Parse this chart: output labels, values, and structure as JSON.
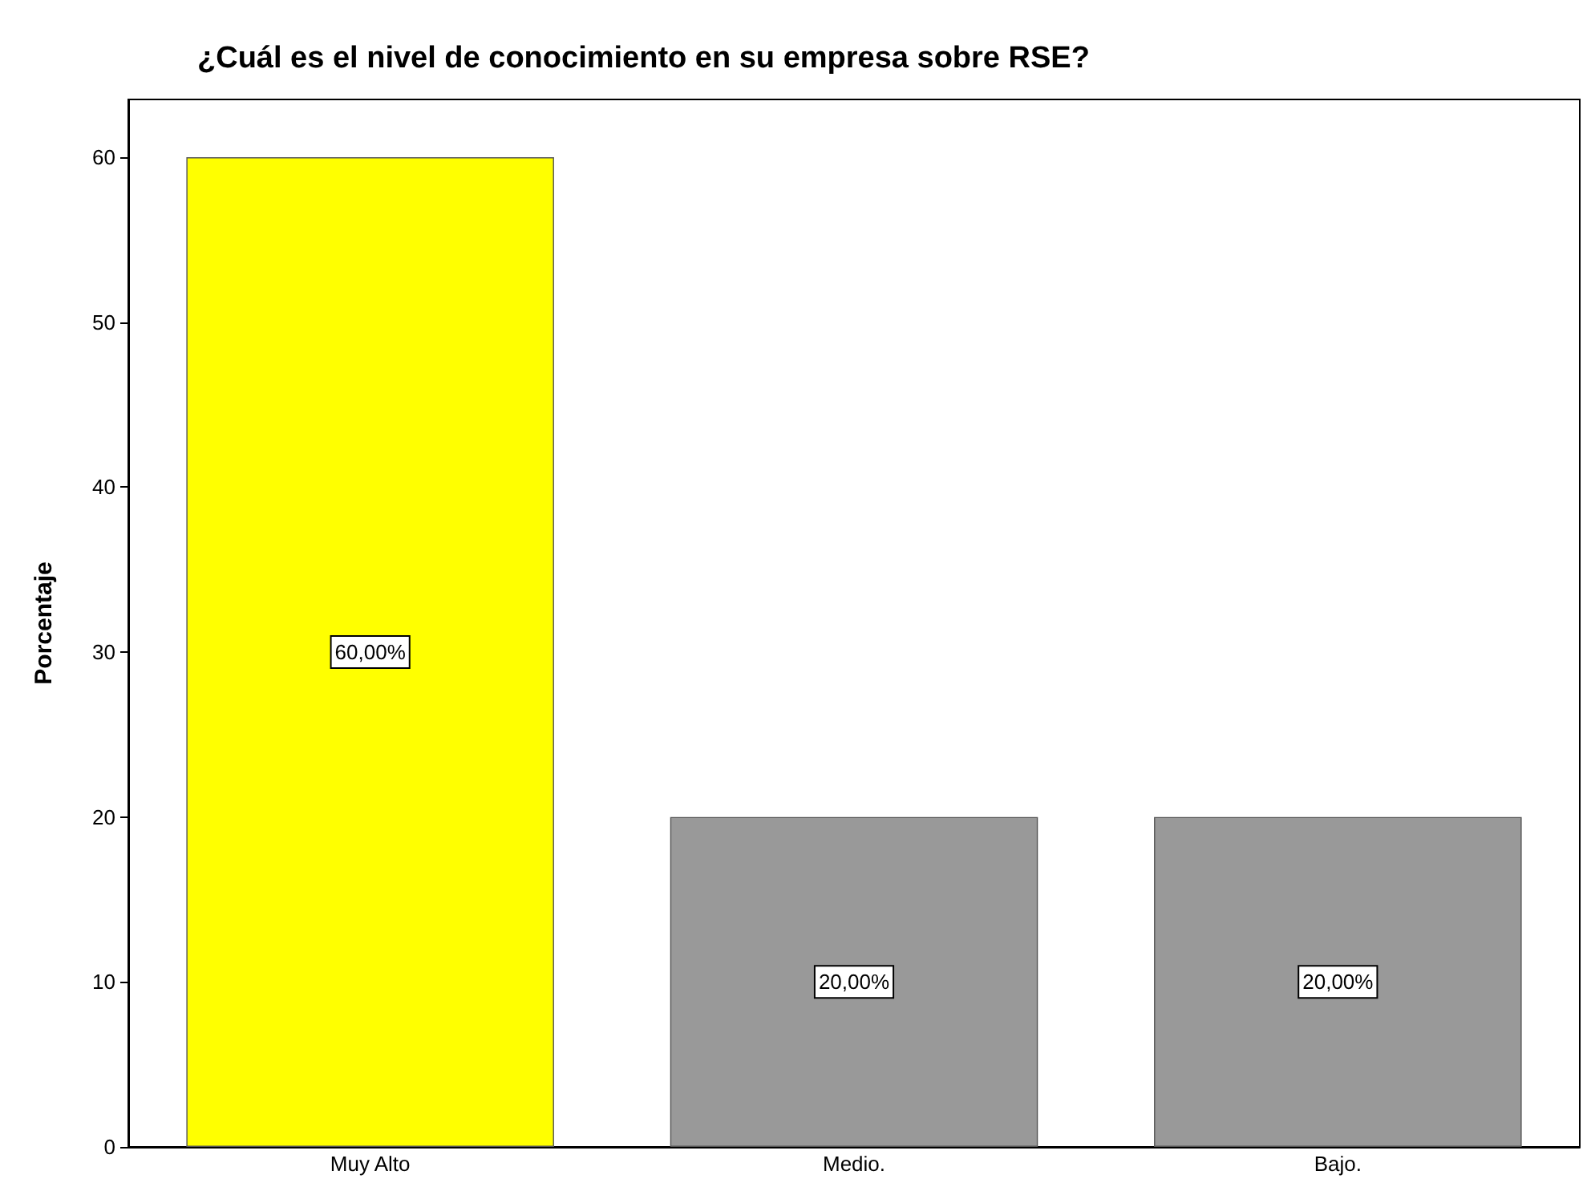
{
  "chart_data": {
    "type": "bar",
    "title": "¿Cuál es el nivel de conocimiento en su empresa sobre RSE?",
    "ylabel": "Porcentaje",
    "categories": [
      "Muy Alto",
      "Medio.",
      "Bajo."
    ],
    "values": [
      60,
      20,
      20
    ],
    "colors": [
      "#ffff00",
      "#999999",
      "#999999"
    ],
    "value_labels": [
      "60,00%",
      "20,00%",
      "20,00%"
    ],
    "ylim": [
      0,
      63.5
    ],
    "yticks": [
      0,
      10,
      20,
      30,
      40,
      50,
      60
    ],
    "grid": false
  }
}
